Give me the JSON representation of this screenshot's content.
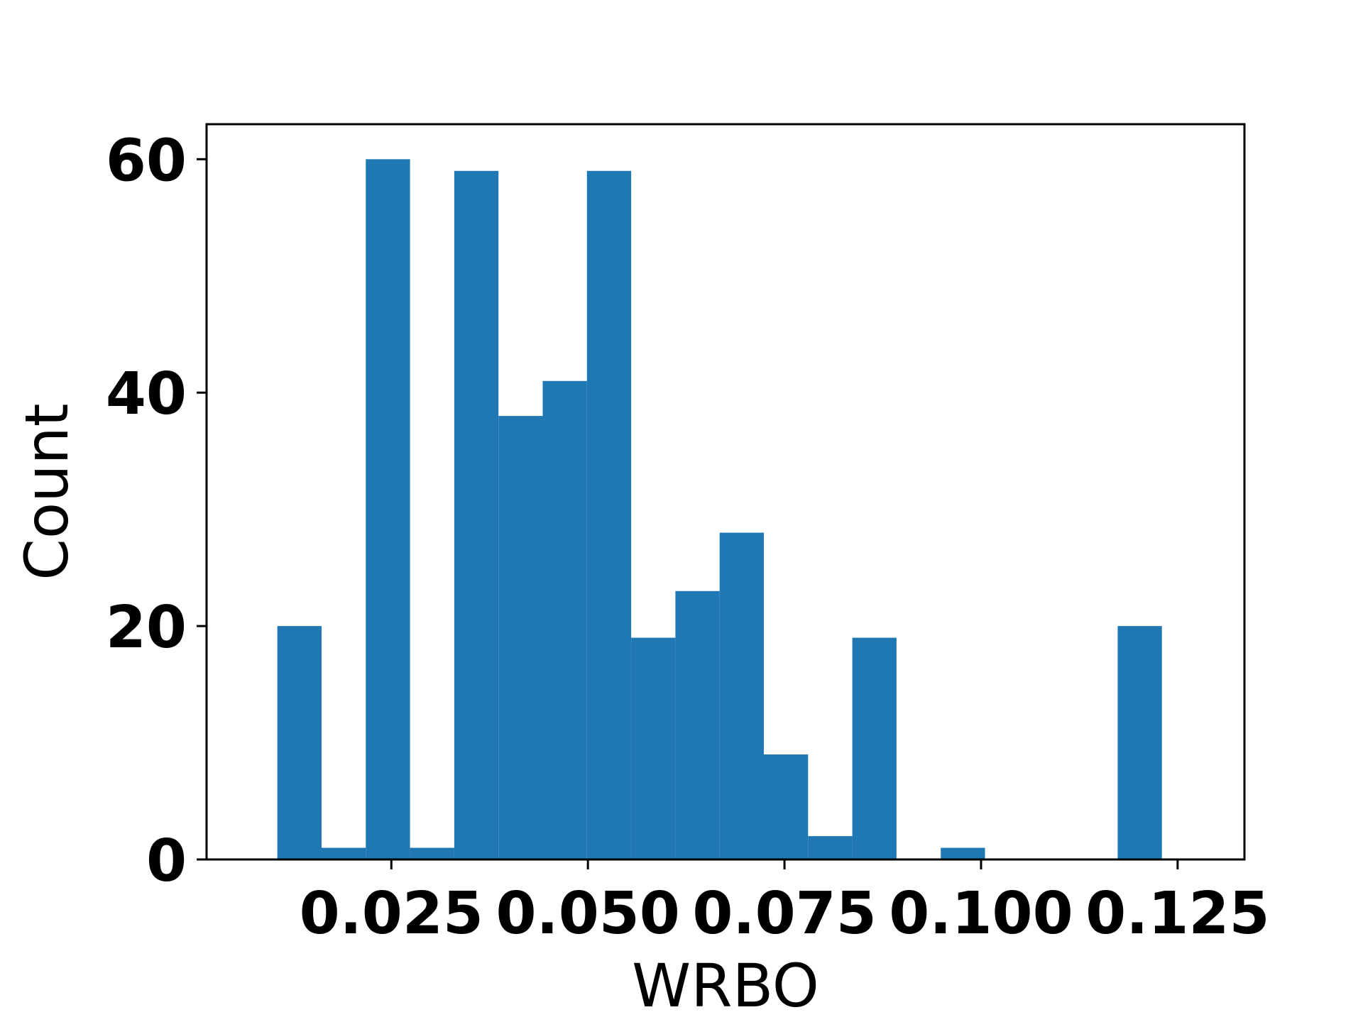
{
  "chart_data": {
    "type": "bar",
    "histogram": true,
    "bin_start": 0.0105,
    "bin_width": 0.005625,
    "counts": [
      20,
      1,
      60,
      1,
      59,
      38,
      41,
      59,
      19,
      23,
      28,
      9,
      2,
      19,
      0,
      1,
      0,
      0,
      0,
      20
    ],
    "xlim": [
      0.0015,
      0.1335
    ],
    "ylim": [
      0,
      63
    ],
    "xticks": [
      0.025,
      0.05,
      0.075,
      0.1,
      0.125
    ],
    "xtick_labels": [
      "0.025",
      "0.050",
      "0.075",
      "0.100",
      "0.125"
    ],
    "yticks": [
      0,
      20,
      40,
      60
    ],
    "ytick_labels": [
      "0",
      "20",
      "40",
      "60"
    ],
    "xlabel": "WRBO",
    "ylabel": "Count",
    "bar_color": "#1f77b4",
    "grid": false
  }
}
